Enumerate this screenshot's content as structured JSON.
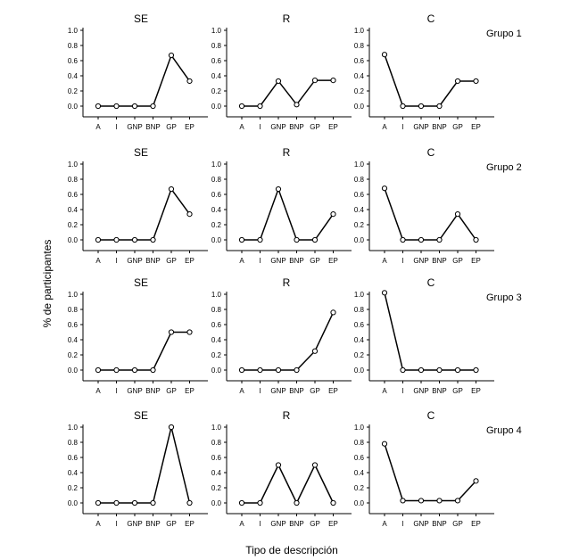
{
  "ylabel": "% de participantes",
  "xlabel": "Tipo de descripción",
  "chart_data": [
    {
      "type": "line",
      "title": "SE",
      "group": "Grupo 1",
      "categories": [
        "A",
        "I",
        "GNP",
        "BNP",
        "GP",
        "EP"
      ],
      "values": [
        0,
        0,
        0,
        0,
        0.67,
        0.33
      ],
      "ylim": [
        0,
        1
      ],
      "yticks": [
        "0.0",
        "0.2",
        "0.4",
        "0.6",
        "0.8",
        "1.0"
      ]
    },
    {
      "type": "line",
      "title": "R",
      "categories": [
        "A",
        "I",
        "GNP",
        "BNP",
        "GP",
        "EP"
      ],
      "values": [
        0,
        0,
        0.33,
        0.02,
        0.34,
        0.34
      ],
      "ylim": [
        0,
        1
      ],
      "yticks": [
        "0.0",
        "0.2",
        "0.4",
        "0.6",
        "0.8",
        "1.0"
      ]
    },
    {
      "type": "line",
      "title": "C",
      "categories": [
        "A",
        "I",
        "GNP",
        "BNP",
        "GP",
        "EP"
      ],
      "values": [
        0.68,
        0,
        0,
        0,
        0.33,
        0.33
      ],
      "ylim": [
        0,
        1
      ],
      "yticks": [
        "0.0",
        "0.2",
        "0.4",
        "0.6",
        "0.8",
        "1.0"
      ]
    },
    {
      "type": "line",
      "title": "SE",
      "group": "Grupo 2",
      "categories": [
        "A",
        "I",
        "GNP",
        "BNP",
        "GP",
        "EP"
      ],
      "values": [
        0,
        0,
        0,
        0,
        0.67,
        0.34
      ],
      "ylim": [
        0,
        1
      ],
      "yticks": [
        "0.0",
        "0.2",
        "0.4",
        "0.6",
        "0.8",
        "1.0"
      ]
    },
    {
      "type": "line",
      "title": "R",
      "categories": [
        "A",
        "I",
        "GNP",
        "BNP",
        "GP",
        "EP"
      ],
      "values": [
        0,
        0,
        0.67,
        0,
        0,
        0.34
      ],
      "ylim": [
        0,
        1
      ],
      "yticks": [
        "0.0",
        "0.2",
        "0.4",
        "0.6",
        "0.8",
        "1.0"
      ]
    },
    {
      "type": "line",
      "title": "C",
      "categories": [
        "A",
        "I",
        "GNP",
        "BNP",
        "GP",
        "EP"
      ],
      "values": [
        0.68,
        0,
        0,
        0,
        0.34,
        0
      ],
      "ylim": [
        0,
        1
      ],
      "yticks": [
        "0.0",
        "0.2",
        "0.4",
        "0.6",
        "0.8",
        "1.0"
      ]
    },
    {
      "type": "line",
      "title": "SE",
      "group": "Grupo 3",
      "categories": [
        "A",
        "I",
        "GNP",
        "BNP",
        "GP",
        "EP"
      ],
      "values": [
        0,
        0,
        0,
        0,
        0.5,
        0.5
      ],
      "ylim": [
        0,
        1
      ],
      "yticks": [
        "0.0",
        "0.2",
        "0.4",
        "0.6",
        "0.8",
        "1.0"
      ]
    },
    {
      "type": "line",
      "title": "R",
      "categories": [
        "A",
        "I",
        "GNP",
        "BNP",
        "GP",
        "EP"
      ],
      "values": [
        0,
        0,
        0,
        0,
        0.25,
        0.76
      ],
      "ylim": [
        0,
        1
      ],
      "yticks": [
        "0.0",
        "0.2",
        "0.4",
        "0.6",
        "0.8",
        "1.0"
      ]
    },
    {
      "type": "line",
      "title": "C",
      "categories": [
        "A",
        "I",
        "GNP",
        "BNP",
        "GP",
        "EP"
      ],
      "values": [
        1.02,
        0,
        0,
        0,
        0,
        0
      ],
      "ylim": [
        0,
        1
      ],
      "yticks": [
        "0.0",
        "0.2",
        "0.4",
        "0.6",
        "0.8",
        "1.0"
      ]
    },
    {
      "type": "line",
      "title": "SE",
      "group": "Grupo 4",
      "categories": [
        "A",
        "I",
        "GNP",
        "BNP",
        "GP",
        "EP"
      ],
      "values": [
        0,
        0,
        0,
        0,
        1.0,
        0
      ],
      "ylim": [
        0,
        1
      ],
      "yticks": [
        "0.0",
        "0.2",
        "0.4",
        "0.6",
        "0.8",
        "1.0"
      ]
    },
    {
      "type": "line",
      "title": "R",
      "categories": [
        "A",
        "I",
        "GNP",
        "BNP",
        "GP",
        "EP"
      ],
      "values": [
        0,
        0,
        0.5,
        0,
        0.5,
        0
      ],
      "ylim": [
        0,
        1
      ],
      "yticks": [
        "0.0",
        "0.2",
        "0.4",
        "0.6",
        "0.8",
        "1.0"
      ]
    },
    {
      "type": "line",
      "title": "C",
      "categories": [
        "A",
        "I",
        "GNP",
        "BNP",
        "GP",
        "EP"
      ],
      "values": [
        0.78,
        0.03,
        0.03,
        0.03,
        0.03,
        0.29
      ],
      "ylim": [
        0,
        1
      ],
      "yticks": [
        "0.0",
        "0.2",
        "0.4",
        "0.6",
        "0.8",
        "1.0"
      ]
    }
  ]
}
